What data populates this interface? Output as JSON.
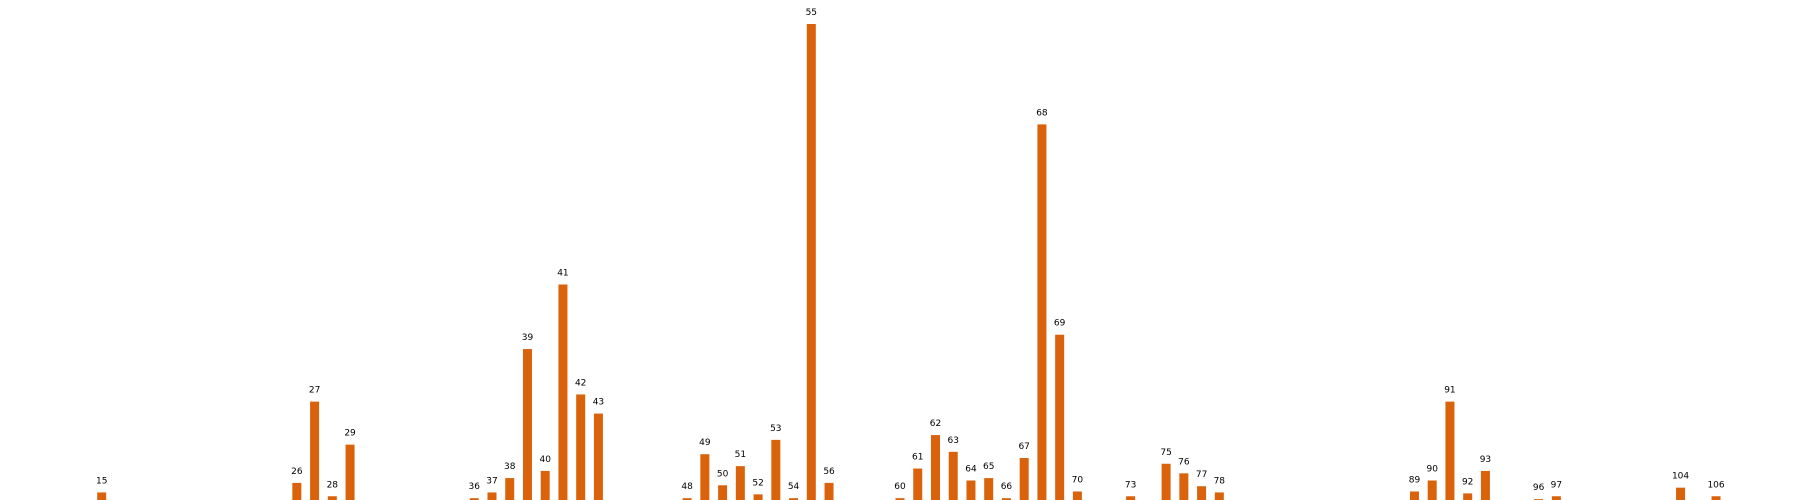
{
  "chart_data": {
    "type": "bar",
    "title": "",
    "xlabel": "",
    "ylabel": "",
    "bar_color": "#d9620b",
    "background": "#ffffff",
    "grid": false,
    "axes_visible": false,
    "xlim": [
      10,
      110
    ],
    "ylim": [
      0,
      100
    ],
    "categories": [
      15,
      26,
      27,
      28,
      29,
      36,
      37,
      38,
      39,
      40,
      41,
      42,
      43,
      48,
      49,
      50,
      51,
      52,
      53,
      54,
      55,
      56,
      60,
      61,
      62,
      63,
      64,
      65,
      66,
      67,
      68,
      69,
      70,
      73,
      75,
      76,
      77,
      78,
      89,
      90,
      91,
      92,
      93,
      96,
      97,
      104,
      106
    ],
    "labels": [
      "15",
      "26",
      "27",
      "28",
      "29",
      "36",
      "37",
      "38",
      "39",
      "40",
      "41",
      "42",
      "43",
      "48",
      "49",
      "50",
      "51",
      "52",
      "53",
      "54",
      "55",
      "56",
      "60",
      "61",
      "62",
      "63",
      "64",
      "65",
      "66",
      "67",
      "68",
      "69",
      "70",
      "73",
      "75",
      "76",
      "77",
      "78",
      "89",
      "90",
      "91",
      "92",
      "93",
      "96",
      "97",
      "104",
      "106"
    ],
    "values": [
      2,
      4,
      21,
      1.2,
      12,
      0.8,
      2,
      5,
      32,
      6.5,
      45.5,
      22.5,
      18.5,
      0.8,
      10,
      3.5,
      7.5,
      1.6,
      13,
      0.8,
      100,
      4,
      0.8,
      7,
      14,
      10.5,
      4.5,
      5,
      0.8,
      9.2,
      79,
      35,
      2.2,
      1.2,
      8,
      6,
      3.3,
      2,
      2.2,
      4.5,
      21,
      1.8,
      6.5,
      0.6,
      1.2,
      3,
      1.2
    ]
  }
}
